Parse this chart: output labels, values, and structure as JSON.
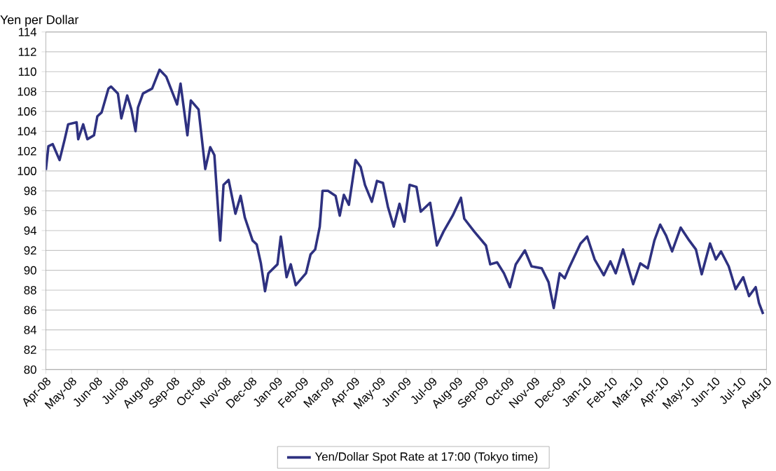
{
  "chart_data": {
    "type": "line",
    "ylabel": "Yen per Dollar",
    "legend": "bottom",
    "grid": "y",
    "marker": "none",
    "line_style": "solid",
    "ylim": [
      80,
      114
    ],
    "yticks": [
      80,
      82,
      84,
      86,
      88,
      90,
      92,
      94,
      96,
      98,
      100,
      102,
      104,
      106,
      108,
      110,
      112,
      114
    ],
    "xlim": [
      "2008-04-01",
      "2010-08-01"
    ],
    "xticks": [
      {
        "value": "2008-04-01",
        "label": "Apr-08"
      },
      {
        "value": "2008-05-01",
        "label": "May-08"
      },
      {
        "value": "2008-06-01",
        "label": "Jun-08"
      },
      {
        "value": "2008-07-01",
        "label": "Jul-08"
      },
      {
        "value": "2008-08-01",
        "label": "Aug-08"
      },
      {
        "value": "2008-09-01",
        "label": "Sep-08"
      },
      {
        "value": "2008-10-01",
        "label": "Oct-08"
      },
      {
        "value": "2008-11-01",
        "label": "Nov-08"
      },
      {
        "value": "2008-12-01",
        "label": "Dec-08"
      },
      {
        "value": "2009-01-01",
        "label": "Jan-09"
      },
      {
        "value": "2009-02-01",
        "label": "Feb-09"
      },
      {
        "value": "2009-03-01",
        "label": "Mar-09"
      },
      {
        "value": "2009-04-01",
        "label": "Apr-09"
      },
      {
        "value": "2009-05-01",
        "label": "May-09"
      },
      {
        "value": "2009-06-01",
        "label": "Jun-09"
      },
      {
        "value": "2009-07-01",
        "label": "Jul-09"
      },
      {
        "value": "2009-08-01",
        "label": "Aug-09"
      },
      {
        "value": "2009-09-01",
        "label": "Sep-09"
      },
      {
        "value": "2009-10-01",
        "label": "Oct-09"
      },
      {
        "value": "2009-11-01",
        "label": "Nov-09"
      },
      {
        "value": "2009-12-01",
        "label": "Dec-09"
      },
      {
        "value": "2010-01-01",
        "label": "Jan-10"
      },
      {
        "value": "2010-02-01",
        "label": "Feb-10"
      },
      {
        "value": "2010-03-01",
        "label": "Mar-10"
      },
      {
        "value": "2010-04-01",
        "label": "Apr-10"
      },
      {
        "value": "2010-05-01",
        "label": "May-10"
      },
      {
        "value": "2010-06-01",
        "label": "Jun-10"
      },
      {
        "value": "2010-07-01",
        "label": "Jul-10"
      },
      {
        "value": "2010-08-01",
        "label": "Aug-10"
      }
    ],
    "x": [
      "2008-04-01",
      "2008-04-04",
      "2008-04-09",
      "2008-04-17",
      "2008-04-23",
      "2008-04-27",
      "2008-05-07",
      "2008-05-09",
      "2008-05-15",
      "2008-05-20",
      "2008-05-28",
      "2008-06-01",
      "2008-06-06",
      "2008-06-14",
      "2008-06-17",
      "2008-06-25",
      "2008-06-29",
      "2008-07-06",
      "2008-07-11",
      "2008-07-16",
      "2008-07-19",
      "2008-07-25",
      "2008-08-05",
      "2008-08-14",
      "2008-08-22",
      "2008-09-04",
      "2008-09-08",
      "2008-09-16",
      "2008-09-20",
      "2008-09-29",
      "2008-10-07",
      "2008-10-13",
      "2008-10-18",
      "2008-10-25",
      "2008-10-29",
      "2008-11-04",
      "2008-11-12",
      "2008-11-18",
      "2008-11-23",
      "2008-12-02",
      "2008-12-07",
      "2008-12-12",
      "2008-12-17",
      "2008-12-21",
      "2009-01-01",
      "2009-01-05",
      "2009-01-12",
      "2009-01-17",
      "2009-01-23",
      "2009-02-04",
      "2009-02-09",
      "2009-02-14",
      "2009-02-19",
      "2009-02-22",
      "2009-02-28",
      "2009-03-09",
      "2009-03-14",
      "2009-03-19",
      "2009-03-25",
      "2009-04-02",
      "2009-04-08",
      "2009-04-13",
      "2009-04-21",
      "2009-04-27",
      "2009-05-04",
      "2009-05-10",
      "2009-05-17",
      "2009-05-24",
      "2009-05-30",
      "2009-06-05",
      "2009-06-13",
      "2009-06-18",
      "2009-06-29",
      "2009-07-07",
      "2009-07-15",
      "2009-07-26",
      "2009-08-05",
      "2009-08-09",
      "2009-08-21",
      "2009-09-04",
      "2009-09-09",
      "2009-09-17",
      "2009-09-25",
      "2009-10-02",
      "2009-10-09",
      "2009-10-20",
      "2009-10-28",
      "2009-11-09",
      "2009-11-17",
      "2009-11-23",
      "2009-11-30",
      "2009-12-06",
      "2009-12-11",
      "2009-12-25",
      "2010-01-02",
      "2010-01-11",
      "2010-01-22",
      "2010-01-30",
      "2010-02-05",
      "2010-02-13",
      "2010-02-24",
      "2010-03-04",
      "2010-03-13",
      "2010-03-21",
      "2010-03-28",
      "2010-04-04",
      "2010-04-11",
      "2010-04-21",
      "2010-05-01",
      "2010-05-09",
      "2010-05-16",
      "2010-05-26",
      "2010-06-02",
      "2010-06-08",
      "2010-06-17",
      "2010-06-25",
      "2010-07-04",
      "2010-07-11",
      "2010-07-19",
      "2010-07-23",
      "2010-07-28"
    ],
    "series": [
      {
        "name": "Yen/Dollar Spot Rate at 17:00 (Tokyo time)",
        "color": "#2e3180",
        "values": [
          100.1,
          102.5,
          102.7,
          101.1,
          103.2,
          104.7,
          104.9,
          103.2,
          104.7,
          103.2,
          103.6,
          105.5,
          105.9,
          108.3,
          108.5,
          107.8,
          105.3,
          107.6,
          106.2,
          104.0,
          106.4,
          107.8,
          108.3,
          110.2,
          109.5,
          106.7,
          108.8,
          103.6,
          107.1,
          106.2,
          100.2,
          102.4,
          101.6,
          93.0,
          98.6,
          99.1,
          95.7,
          97.5,
          95.3,
          93.0,
          92.6,
          90.7,
          87.9,
          89.7,
          90.6,
          93.4,
          89.3,
          90.6,
          88.5,
          89.7,
          91.6,
          92.1,
          94.4,
          98.0,
          98.0,
          97.5,
          95.5,
          97.6,
          96.6,
          101.1,
          100.4,
          98.6,
          96.9,
          99.0,
          98.8,
          96.4,
          94.4,
          96.7,
          94.9,
          98.6,
          98.4,
          95.9,
          96.8,
          92.5,
          93.9,
          95.5,
          97.3,
          95.2,
          93.9,
          92.5,
          90.6,
          90.8,
          89.7,
          88.3,
          90.6,
          92.0,
          90.4,
          90.2,
          88.8,
          86.2,
          89.7,
          89.2,
          90.2,
          92.7,
          93.4,
          91.1,
          89.5,
          90.9,
          89.7,
          92.1,
          88.6,
          90.7,
          90.2,
          93.0,
          94.6,
          93.5,
          91.9,
          94.3,
          93.0,
          92.1,
          89.6,
          92.7,
          91.1,
          91.9,
          90.4,
          88.1,
          89.3,
          87.4,
          88.3,
          86.7,
          85.6
        ]
      }
    ]
  }
}
